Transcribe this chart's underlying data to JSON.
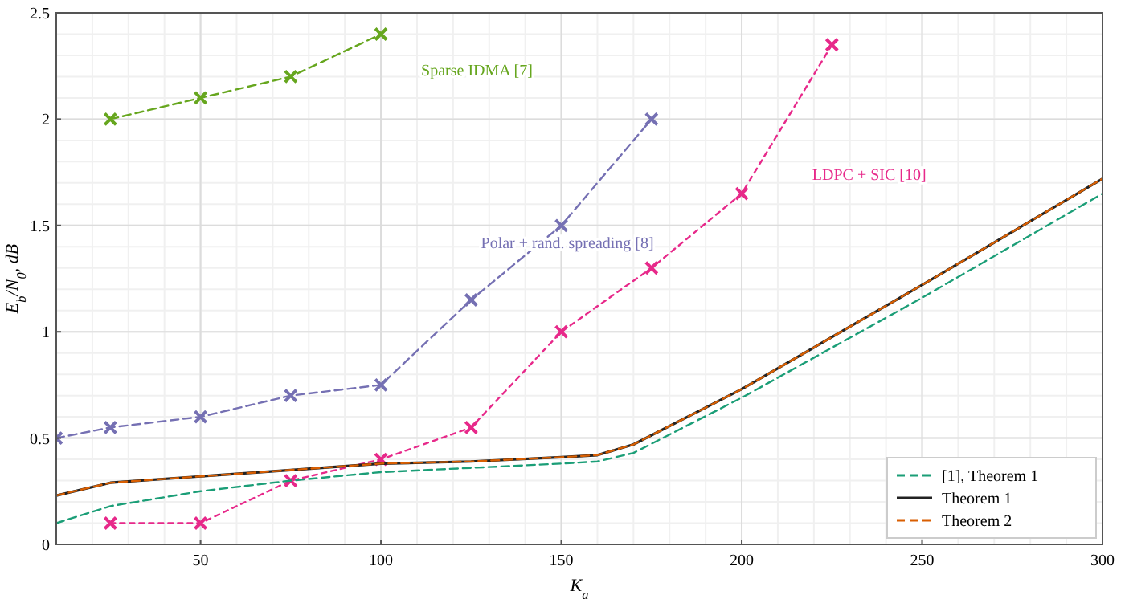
{
  "chart_data": {
    "type": "line",
    "xlabel": "K$_{a}$",
    "ylabel": "E$_{b}$/N$_{0}$, dB",
    "xlim": [
      10,
      300
    ],
    "ylim": [
      0,
      2.5
    ],
    "xticks": [
      50,
      100,
      150,
      200,
      250,
      300
    ],
    "yticks": [
      0,
      0.5,
      1,
      1.5,
      2,
      2.5
    ],
    "grid": true,
    "legend": "bottom right",
    "series": [
      {
        "name": "Sparse IDMA [7]",
        "color": "#66a61e",
        "marker": "cross",
        "line_style": "dashed",
        "x": [
          25,
          50,
          75,
          100
        ],
        "values": [
          2.0,
          2.1,
          2.2,
          2.4
        ]
      },
      {
        "name": "Polar + rand. spreading [8]",
        "color": "#7570b3",
        "marker": "cross",
        "line_style": "dashed",
        "x": [
          10,
          25,
          50,
          75,
          100,
          125,
          150,
          175
        ],
        "values": [
          0.5,
          0.55,
          0.6,
          0.7,
          0.75,
          1.15,
          1.5,
          2.0
        ]
      },
      {
        "name": "LDPC + SIC [10]",
        "color": "#e7298a",
        "marker": "cross",
        "line_style": "dotted",
        "x": [
          25,
          50,
          75,
          100,
          125,
          150,
          175,
          200,
          225
        ],
        "values": [
          0.1,
          0.1,
          0.3,
          0.4,
          0.55,
          1.0,
          1.3,
          1.65,
          2.35
        ]
      },
      {
        "name": "[1], Theorem 1",
        "color": "#1b9e77",
        "marker": "none",
        "line_style": "dashed",
        "x": [
          10,
          25,
          50,
          75,
          100,
          125,
          150,
          160,
          170,
          200,
          250,
          300
        ],
        "values": [
          0.1,
          0.18,
          0.25,
          0.3,
          0.34,
          0.36,
          0.38,
          0.39,
          0.43,
          0.69,
          1.16,
          1.65
        ]
      },
      {
        "name": "Theorem 1",
        "color": "#222222",
        "marker": "none",
        "line_style": "solid",
        "x": [
          10,
          25,
          50,
          75,
          100,
          125,
          150,
          160,
          170,
          200,
          250,
          300
        ],
        "values": [
          0.23,
          0.29,
          0.32,
          0.35,
          0.38,
          0.39,
          0.41,
          0.42,
          0.47,
          0.73,
          1.22,
          1.72
        ]
      },
      {
        "name": "Theorem 2",
        "color": "#d95f02",
        "marker": "none",
        "line_style": "dashed",
        "x": [
          10,
          25,
          50,
          75,
          100,
          125,
          150,
          160,
          170,
          200,
          250,
          300
        ],
        "values": [
          0.23,
          0.29,
          0.32,
          0.35,
          0.38,
          0.39,
          0.41,
          0.42,
          0.47,
          0.73,
          1.22,
          1.72
        ]
      }
    ]
  }
}
